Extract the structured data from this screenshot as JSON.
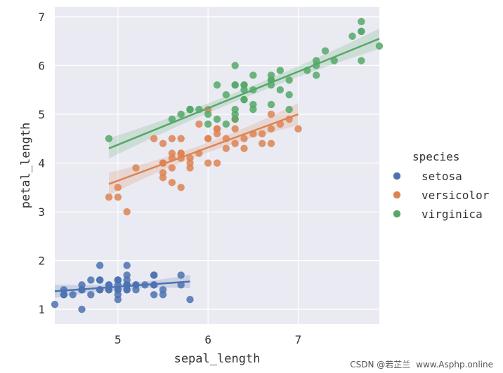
{
  "chart_data": {
    "type": "scatter",
    "title": "",
    "xlabel": "sepal_length",
    "ylabel": "petal_length",
    "xlim": [
      4.3,
      7.9
    ],
    "ylim": [
      0.7,
      7.2
    ],
    "xticks": [
      "5",
      "6",
      "7"
    ],
    "xtick_values": [
      5,
      6,
      7
    ],
    "yticks": [
      "1",
      "2",
      "3",
      "4",
      "5",
      "6",
      "7"
    ],
    "ytick_values": [
      1,
      2,
      3,
      4,
      5,
      6,
      7
    ],
    "grid": true,
    "background_color": "#eaeaf2",
    "legend": {
      "title": "species",
      "placement": "right"
    },
    "series": [
      {
        "name": "setosa",
        "color": "#4c72b0",
        "points": [
          [
            5.1,
            1.4
          ],
          [
            4.9,
            1.4
          ],
          [
            4.7,
            1.3
          ],
          [
            4.6,
            1.5
          ],
          [
            5.0,
            1.4
          ],
          [
            5.4,
            1.7
          ],
          [
            4.6,
            1.4
          ],
          [
            5.0,
            1.5
          ],
          [
            4.4,
            1.4
          ],
          [
            4.9,
            1.5
          ],
          [
            5.4,
            1.5
          ],
          [
            4.8,
            1.6
          ],
          [
            4.8,
            1.4
          ],
          [
            4.3,
            1.1
          ],
          [
            5.8,
            1.2
          ],
          [
            5.7,
            1.5
          ],
          [
            5.4,
            1.3
          ],
          [
            5.1,
            1.4
          ],
          [
            5.7,
            1.7
          ],
          [
            5.1,
            1.5
          ],
          [
            5.4,
            1.7
          ],
          [
            5.1,
            1.5
          ],
          [
            4.6,
            1.0
          ],
          [
            5.1,
            1.7
          ],
          [
            4.8,
            1.9
          ],
          [
            5.0,
            1.6
          ],
          [
            5.0,
            1.6
          ],
          [
            5.2,
            1.5
          ],
          [
            5.2,
            1.4
          ],
          [
            4.7,
            1.6
          ],
          [
            4.8,
            1.6
          ],
          [
            5.4,
            1.5
          ],
          [
            5.2,
            1.5
          ],
          [
            5.5,
            1.4
          ],
          [
            4.9,
            1.5
          ],
          [
            5.0,
            1.2
          ],
          [
            5.5,
            1.3
          ],
          [
            4.9,
            1.4
          ],
          [
            4.4,
            1.3
          ],
          [
            5.1,
            1.5
          ],
          [
            5.0,
            1.3
          ],
          [
            4.5,
            1.3
          ],
          [
            4.4,
            1.3
          ],
          [
            5.0,
            1.6
          ],
          [
            5.1,
            1.9
          ],
          [
            4.8,
            1.4
          ],
          [
            5.1,
            1.6
          ],
          [
            4.6,
            1.4
          ],
          [
            5.3,
            1.5
          ],
          [
            5.0,
            1.4
          ]
        ],
        "fit": {
          "x": [
            4.3,
            5.8
          ],
          "y": [
            1.37,
            1.57
          ]
        }
      },
      {
        "name": "versicolor",
        "color": "#dd8452",
        "points": [
          [
            7.0,
            4.7
          ],
          [
            6.4,
            4.5
          ],
          [
            6.9,
            4.9
          ],
          [
            5.5,
            4.0
          ],
          [
            6.5,
            4.6
          ],
          [
            5.7,
            4.5
          ],
          [
            6.3,
            4.7
          ],
          [
            4.9,
            3.3
          ],
          [
            6.6,
            4.6
          ],
          [
            5.2,
            3.9
          ],
          [
            5.0,
            3.5
          ],
          [
            5.9,
            4.2
          ],
          [
            6.0,
            4.0
          ],
          [
            6.1,
            4.7
          ],
          [
            5.6,
            3.6
          ],
          [
            6.7,
            4.4
          ],
          [
            5.6,
            4.5
          ],
          [
            5.8,
            4.1
          ],
          [
            6.2,
            4.5
          ],
          [
            5.6,
            3.9
          ],
          [
            5.9,
            4.8
          ],
          [
            6.1,
            4.0
          ],
          [
            6.3,
            4.9
          ],
          [
            6.1,
            4.7
          ],
          [
            6.4,
            4.3
          ],
          [
            6.6,
            4.4
          ],
          [
            6.8,
            4.8
          ],
          [
            6.7,
            5.0
          ],
          [
            6.0,
            4.5
          ],
          [
            5.7,
            3.5
          ],
          [
            5.5,
            3.8
          ],
          [
            5.5,
            3.7
          ],
          [
            5.8,
            3.9
          ],
          [
            6.0,
            5.1
          ],
          [
            5.4,
            4.5
          ],
          [
            6.0,
            4.5
          ],
          [
            6.7,
            4.7
          ],
          [
            6.3,
            4.4
          ],
          [
            5.6,
            4.1
          ],
          [
            5.5,
            4.0
          ],
          [
            5.5,
            4.4
          ],
          [
            6.1,
            4.6
          ],
          [
            5.8,
            4.0
          ],
          [
            5.0,
            3.3
          ],
          [
            5.6,
            4.2
          ],
          [
            5.7,
            4.2
          ],
          [
            5.7,
            4.2
          ],
          [
            6.2,
            4.3
          ],
          [
            5.1,
            3.0
          ],
          [
            5.7,
            4.1
          ]
        ],
        "fit": {
          "x": [
            4.9,
            7.0
          ],
          "y": [
            3.57,
            5.0
          ]
        }
      },
      {
        "name": "virginica",
        "color": "#55a868",
        "points": [
          [
            6.3,
            6.0
          ],
          [
            5.8,
            5.1
          ],
          [
            7.1,
            5.9
          ],
          [
            6.3,
            5.6
          ],
          [
            6.5,
            5.8
          ],
          [
            7.6,
            6.6
          ],
          [
            4.9,
            4.5
          ],
          [
            7.3,
            6.3
          ],
          [
            6.7,
            5.8
          ],
          [
            7.2,
            6.1
          ],
          [
            6.5,
            5.1
          ],
          [
            6.4,
            5.3
          ],
          [
            6.8,
            5.5
          ],
          [
            5.7,
            5.0
          ],
          [
            5.8,
            5.1
          ],
          [
            6.4,
            5.3
          ],
          [
            6.5,
            5.5
          ],
          [
            7.7,
            6.7
          ],
          [
            7.7,
            6.9
          ],
          [
            6.0,
            5.0
          ],
          [
            6.9,
            5.7
          ],
          [
            5.6,
            4.9
          ],
          [
            7.7,
            6.7
          ],
          [
            6.3,
            4.9
          ],
          [
            6.7,
            5.7
          ],
          [
            7.2,
            6.0
          ],
          [
            6.2,
            4.8
          ],
          [
            6.1,
            4.9
          ],
          [
            6.4,
            5.6
          ],
          [
            7.2,
            5.8
          ],
          [
            7.4,
            6.1
          ],
          [
            7.9,
            6.4
          ],
          [
            6.4,
            5.6
          ],
          [
            6.3,
            5.1
          ],
          [
            6.1,
            5.6
          ],
          [
            7.7,
            6.1
          ],
          [
            6.3,
            5.6
          ],
          [
            6.4,
            5.5
          ],
          [
            6.0,
            4.8
          ],
          [
            6.9,
            5.4
          ],
          [
            6.7,
            5.6
          ],
          [
            6.9,
            5.1
          ],
          [
            5.8,
            5.1
          ],
          [
            6.8,
            5.9
          ],
          [
            6.7,
            5.7
          ],
          [
            6.7,
            5.2
          ],
          [
            6.3,
            5.0
          ],
          [
            6.5,
            5.2
          ],
          [
            6.2,
            5.4
          ],
          [
            5.9,
            5.1
          ]
        ],
        "fit": {
          "x": [
            4.9,
            7.9
          ],
          "y": [
            4.3,
            6.55
          ]
        }
      }
    ]
  },
  "watermark": {
    "source": "CSDN @若芷兰",
    "site": "www.Asphp.online"
  }
}
